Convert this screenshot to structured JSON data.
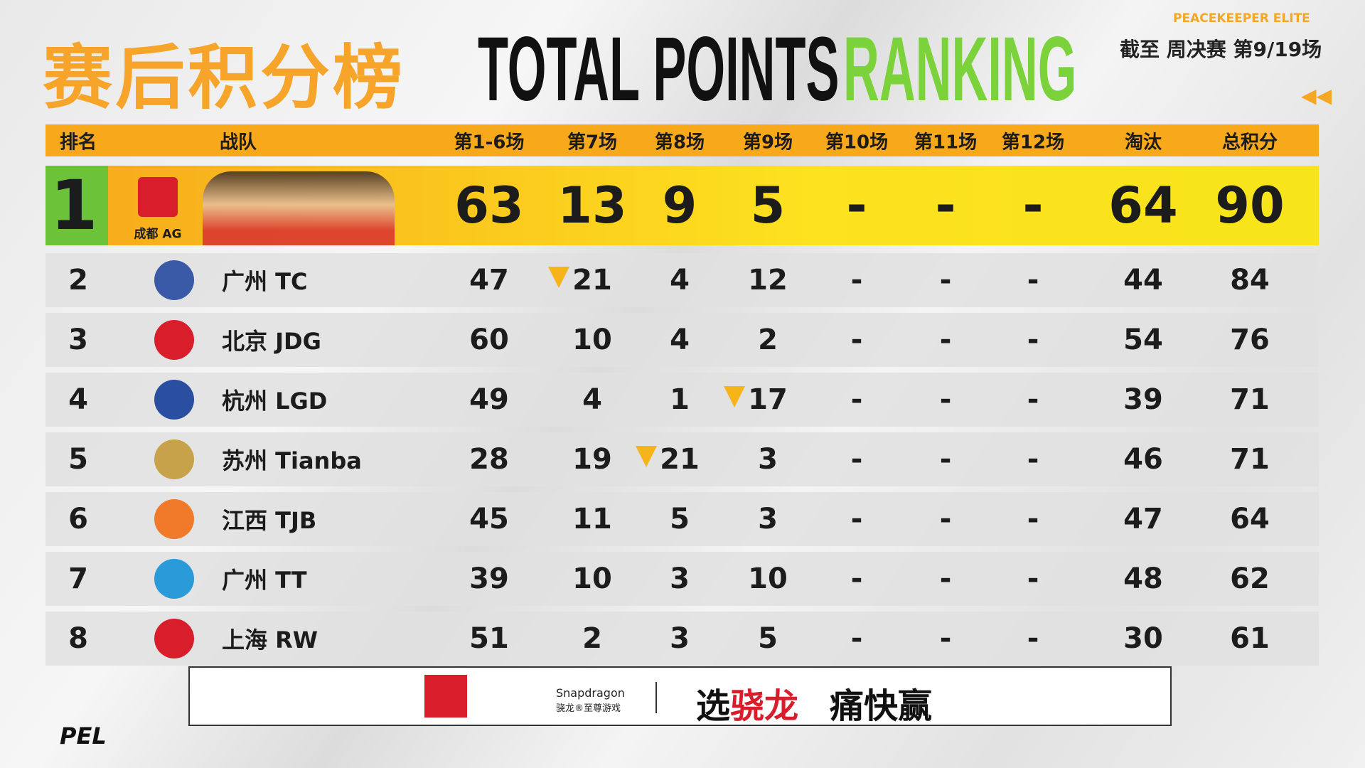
{
  "header": {
    "brand": "PEACEKEEPER ELITE",
    "title_cn": "赛后积分榜",
    "title_en": "TOTAL POINTS",
    "title_en_accent": "RANKING",
    "status": "截至 周决赛 第9/19场"
  },
  "table": {
    "columns": [
      "排名",
      "战队",
      "第1-6场",
      "第7场",
      "第8场",
      "第9场",
      "第10场",
      "第11场",
      "第12场",
      "淘汰",
      "总积分"
    ],
    "rows": [
      [
        1,
        "成都 AG",
        63,
        13,
        9,
        5,
        "-",
        "-",
        "-",
        64,
        90
      ],
      [
        2,
        "广州 TC",
        47,
        21,
        4,
        12,
        "-",
        "-",
        "-",
        44,
        84
      ],
      [
        3,
        "北京 JDG",
        60,
        10,
        4,
        2,
        "-",
        "-",
        "-",
        54,
        76
      ],
      [
        4,
        "杭州 LGD",
        49,
        4,
        1,
        17,
        "-",
        "-",
        "-",
        39,
        71
      ],
      [
        5,
        "苏州 Tianba",
        28,
        19,
        21,
        3,
        "-",
        "-",
        "-",
        46,
        71
      ],
      [
        6,
        "江西 TJB",
        45,
        11,
        5,
        3,
        "-",
        "-",
        "-",
        47,
        64
      ],
      [
        7,
        "广州 TT",
        39,
        10,
        3,
        10,
        "-",
        "-",
        "-",
        48,
        62
      ],
      [
        8,
        "上海 RW",
        51,
        2,
        3,
        5,
        "-",
        "-",
        "-",
        30,
        61
      ]
    ]
  },
  "footer": {
    "sponsor_brand": "Snapdragon",
    "sponsor_sub": "骁龙®至尊游戏",
    "slogan": [
      "选",
      "骁龙",
      "痛快赢"
    ],
    "league": "PEL"
  }
}
